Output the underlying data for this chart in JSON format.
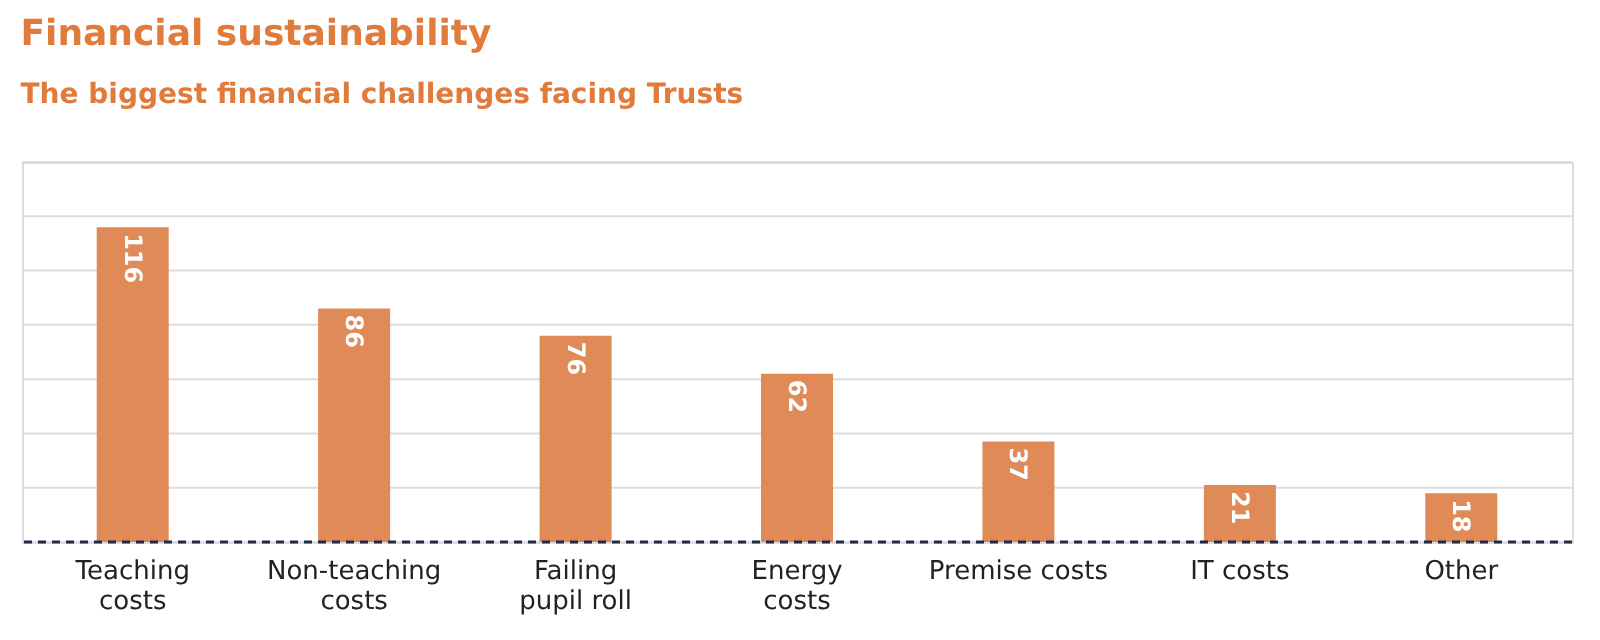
{
  "chart_data": {
    "type": "bar",
    "title": "Financial sustainability",
    "subtitle": "The biggest financial challenges facing Trusts",
    "categories": [
      "Teaching\ncosts",
      "Non-teaching\ncosts",
      "Failing\npupil roll",
      "Energy\ncosts",
      "Premise costs",
      "IT costs",
      "Other"
    ],
    "values": [
      116,
      86,
      76,
      62,
      37,
      21,
      18
    ],
    "color": "#e08a58",
    "ylim": [
      0,
      140
    ],
    "yticks": [
      {
        "value": 0,
        "label": null
      },
      {
        "value": 20,
        "label": null
      },
      {
        "value": 40,
        "label": null
      },
      {
        "value": 60,
        "label": null
      },
      {
        "value": 80,
        "label": null
      },
      {
        "value": 100,
        "label": null
      },
      {
        "value": 120,
        "label": null
      },
      {
        "value": 140,
        "label": null
      }
    ],
    "grid": "y",
    "tick_labels": "x",
    "data_labels": true,
    "ref_lines": [
      {
        "axis": "y",
        "value": 0,
        "color": "#1f2a44",
        "line_style": "dashed"
      }
    ]
  }
}
